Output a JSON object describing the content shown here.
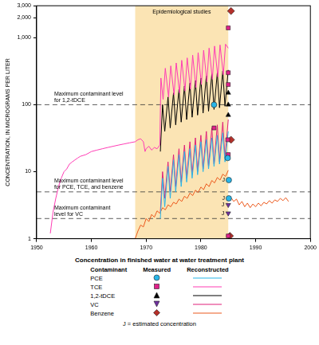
{
  "chart_data": {
    "type": "line",
    "y_label": "CONCENTRATION, IN MICROGRAMS PER LITER",
    "log": "y",
    "grid": false,
    "legend": "bottom",
    "xlim": [
      1950,
      2000
    ],
    "xticks": [
      1950,
      1960,
      1970,
      1980,
      1990,
      2000
    ],
    "ylim": [
      1,
      3000
    ],
    "yticks": [
      1,
      10,
      100,
      {
        "value": 1000,
        "label": "1,000"
      },
      {
        "value": 2000,
        "label": "2,000"
      },
      {
        "value": 3000,
        "label": "3,000"
      }
    ],
    "shaded_region": {
      "label": "Epidemiological studies",
      "x": [
        1968,
        1985
      ]
    },
    "reference_lines": [
      {
        "value": 100,
        "label": [
          "Maximum contaminant level",
          "for 1,2-tDCE"
        ]
      },
      {
        "value": 5,
        "label": [
          "Maximum contaminant level",
          "for PCE, TCE, and benzene"
        ]
      },
      {
        "value": 2,
        "label": [
          "Maximum contaminant",
          "level for VC"
        ]
      }
    ],
    "annotations": [
      {
        "text": "J",
        "x": 1985.1,
        "y": 7.5
      },
      {
        "text": "J",
        "x": 1985.1,
        "y": 4
      },
      {
        "text": "J",
        "x": 1985,
        "y": 3.2
      },
      {
        "text": "J",
        "x": 1985,
        "y": 2.4
      }
    ],
    "legend_title": "Concentration in finished water at water treatment plant",
    "legend_columns": [
      "Contaminant",
      "Measured",
      "Reconstructed"
    ],
    "note": "J = estimated concentration",
    "series": [
      {
        "name": "PCE",
        "measured": {
          "color": "#29b6e8",
          "marker": "circle",
          "x": [
            1982.4,
            1984.9,
            1985.1,
            1985.1
          ],
          "values": [
            100,
            16,
            7.5,
            4
          ]
        },
        "reconstructed": {
          "color": "#29b6e8",
          "x": [
            1972.6,
            1973.0,
            1973.4,
            1974.0,
            1974.4,
            1975.0,
            1975.4,
            1976.0,
            1976.4,
            1977.0,
            1977.4,
            1978.0,
            1978.4,
            1979.0,
            1979.4,
            1980.0,
            1980.4,
            1981.0,
            1981.4,
            1982.0,
            1982.4,
            1983.0,
            1983.4,
            1984.0,
            1984.4,
            1985.0
          ],
          "values": [
            2,
            8,
            3,
            12,
            4,
            15,
            5,
            18,
            6,
            20,
            7,
            22,
            8,
            25,
            9,
            28,
            10,
            30,
            11,
            32,
            12,
            35,
            13,
            38,
            14,
            40
          ]
        }
      },
      {
        "name": "TCE",
        "measured": {
          "color": "#e0218a",
          "marker": "square",
          "x": [
            1985,
            1985,
            1985,
            1982.4,
            1984.9,
            1985,
            1985
          ],
          "values": [
            1400,
            300,
            200,
            45,
            30,
            18,
            1.1
          ]
        },
        "reconstructed": {
          "color": "#ff3cb4",
          "x": [
            1952.5,
            1953,
            1953.5,
            1954,
            1954.5,
            1955,
            1955.5,
            1956,
            1956.5,
            1957,
            1957.5,
            1958,
            1959,
            1960,
            1961,
            1962,
            1963,
            1964,
            1965,
            1966,
            1967,
            1968,
            1968.5,
            1969,
            1969.5,
            1969.8,
            1970,
            1970.5,
            1971,
            1971.5,
            1972,
            1972.5,
            1972.7,
            1973.1,
            1973.5,
            1974.1,
            1974.5,
            1975.1,
            1975.5,
            1976.1,
            1976.5,
            1977.1,
            1977.5,
            1978.1,
            1978.5,
            1979.1,
            1979.5,
            1980.1,
            1980.5,
            1981.1,
            1981.5,
            1982.1,
            1982.5,
            1983.1,
            1983.5,
            1984.1,
            1984.5,
            1985.0
          ],
          "values": [
            1.2,
            2.5,
            4,
            6,
            8,
            10,
            11,
            13,
            14,
            15,
            16,
            17,
            18,
            20,
            21,
            22,
            23,
            24,
            25,
            26,
            27,
            28,
            30,
            31,
            28,
            20,
            22,
            24,
            21,
            23,
            22,
            25,
            250,
            120,
            350,
            130,
            380,
            140,
            420,
            150,
            460,
            160,
            500,
            170,
            550,
            180,
            600,
            200,
            650,
            220,
            700,
            240,
            750,
            260,
            780,
            280,
            800,
            700
          ]
        }
      },
      {
        "name": "1,2-tDCE",
        "measured": {
          "color": "#000000",
          "marker": "triangle",
          "x": [
            1985,
            1985,
            1985
          ],
          "values": [
            150,
            100,
            70
          ]
        },
        "reconstructed": {
          "color": "#000000",
          "x": [
            1972.6,
            1973.0,
            1973.4,
            1974.0,
            1974.4,
            1975.0,
            1975.4,
            1976.0,
            1976.4,
            1977.0,
            1977.4,
            1978.0,
            1978.4,
            1979.0,
            1979.4,
            1980.0,
            1980.4,
            1981.0,
            1981.4,
            1982.0,
            1982.4,
            1983.0,
            1983.4,
            1984.0,
            1984.4,
            1985.0
          ],
          "values": [
            20,
            100,
            40,
            130,
            45,
            150,
            50,
            170,
            55,
            190,
            60,
            210,
            65,
            230,
            70,
            250,
            75,
            270,
            80,
            290,
            85,
            300,
            90,
            320,
            95,
            330
          ]
        }
      },
      {
        "name": "VC",
        "measured": {
          "color": "#7030a0",
          "marker": "triangle-down",
          "x": [
            1985,
            1985
          ],
          "values": [
            3.2,
            2.4
          ]
        },
        "reconstructed": {
          "color": "#e0207a",
          "x": [
            1972.6,
            1973.0,
            1973.4,
            1974.0,
            1974.4,
            1975.0,
            1975.4,
            1976.0,
            1976.4,
            1977.0,
            1977.4,
            1978.0,
            1978.4,
            1979.0,
            1979.4,
            1980.0,
            1980.4,
            1981.0,
            1981.4,
            1982.0,
            1982.4,
            1983.0,
            1983.4,
            1984.0,
            1984.4,
            1985.0
          ],
          "values": [
            2.5,
            10,
            4,
            14,
            5,
            18,
            6,
            22,
            7,
            25,
            8,
            28,
            9,
            32,
            10,
            35,
            11,
            40,
            12,
            45,
            13,
            50,
            14,
            55,
            16,
            60
          ]
        }
      },
      {
        "name": "Benzene",
        "measured": {
          "color": "#b5302a",
          "marker": "diamond",
          "x": [
            1985.5,
            1985.5,
            1985.3
          ],
          "values": [
            2500,
            30,
            1.1
          ]
        },
        "reconstructed": {
          "color": "#ec5a1e",
          "x": [
            1968,
            1968.5,
            1969,
            1969.5,
            1970,
            1970.5,
            1971,
            1971.5,
            1972,
            1972.5,
            1973,
            1973.5,
            1974,
            1974.5,
            1975,
            1975.5,
            1976,
            1976.5,
            1977,
            1977.5,
            1978,
            1978.5,
            1979,
            1979.5,
            1980,
            1980.5,
            1981,
            1981.5,
            1982,
            1982.5,
            1983,
            1983.5,
            1984,
            1984.5,
            1985,
            1985.3,
            1985.6,
            1986,
            1986.5,
            1987,
            1987.5,
            1988,
            1988.5,
            1989,
            1989.5,
            1990,
            1990.5,
            1991,
            1991.5,
            1992,
            1992.5,
            1993,
            1993.5,
            1994,
            1994.5,
            1995,
            1995.5,
            1996
          ],
          "values": [
            1.0,
            1.3,
            1.6,
            1.5,
            2.0,
            1.8,
            2.3,
            2.1,
            2.6,
            2.4,
            2.9,
            2.7,
            3.2,
            3.0,
            3.5,
            3.3,
            3.9,
            3.6,
            4.3,
            4.0,
            4.8,
            4.4,
            5.3,
            4.9,
            5.9,
            5.4,
            6.6,
            6.0,
            7.4,
            6.8,
            8.2,
            7.5,
            9.2,
            8.5,
            10.5,
            null,
            4.0,
            3.6,
            3.9,
            3.2,
            3.6,
            3.0,
            3.4,
            2.9,
            3.3,
            3.0,
            3.4,
            3.1,
            3.5,
            3.3,
            3.7,
            3.4,
            3.8,
            3.6,
            4.0,
            3.7,
            4.1,
            3.6
          ]
        }
      }
    ]
  }
}
